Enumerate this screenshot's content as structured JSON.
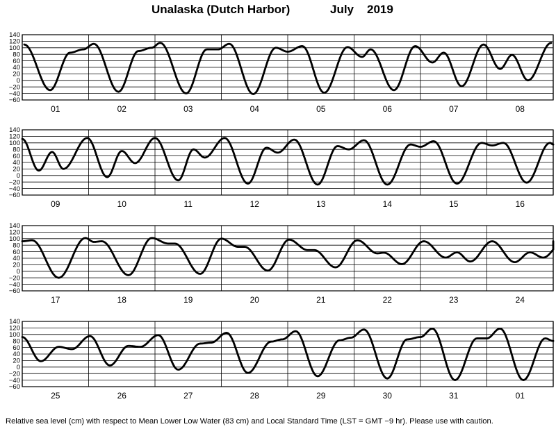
{
  "title": {
    "station": "Unalaska (Dutch Harbor)",
    "month": "July",
    "year": "2019"
  },
  "footnote": "Relative sea level (cm) with respect to Mean Lower Low Water (83 cm) and Local Standard Time (LST = GMT −9 hr). Please use with caution.",
  "chart_data": {
    "type": "line",
    "title": "Unalaska (Dutch Harbor)    July   2019",
    "ylabel": "Relative sea level (cm)",
    "ylim": [
      -60,
      140
    ],
    "yticks": [
      -60,
      -40,
      -20,
      0,
      20,
      40,
      60,
      80,
      100,
      120,
      140
    ],
    "ytick_labels": [
      "−60",
      "−40",
      "−20",
      "0",
      "20",
      "40",
      "60",
      "80",
      "100",
      "120",
      "140"
    ],
    "grid": true,
    "x_unit": "day",
    "panels": [
      {
        "days": [
          "01",
          "02",
          "03",
          "04",
          "05",
          "06",
          "07",
          "08"
        ],
        "extrema": [
          [
            1.03,
            110
          ],
          [
            1.42,
            -30
          ],
          [
            1.72,
            85
          ],
          [
            1.92,
            95
          ],
          [
            2.08,
            112
          ],
          [
            2.45,
            -35
          ],
          [
            2.75,
            90
          ],
          [
            2.95,
            100
          ],
          [
            3.08,
            115
          ],
          [
            3.47,
            -40
          ],
          [
            3.78,
            95
          ],
          [
            3.95,
            95
          ],
          [
            4.12,
            112
          ],
          [
            4.48,
            -42
          ],
          [
            4.82,
            100
          ],
          [
            5.0,
            88
          ],
          [
            5.22,
            105
          ],
          [
            5.55,
            -38
          ],
          [
            5.9,
            102
          ],
          [
            6.12,
            72
          ],
          [
            6.25,
            95
          ],
          [
            6.6,
            -30
          ],
          [
            6.92,
            105
          ],
          [
            7.18,
            55
          ],
          [
            7.35,
            85
          ],
          [
            7.62,
            -18
          ],
          [
            7.95,
            110
          ],
          [
            8.2,
            35
          ],
          [
            8.38,
            78
          ],
          [
            8.62,
            0
          ],
          [
            8.97,
            115
          ]
        ]
      },
      {
        "days": [
          "09",
          "10",
          "11",
          "12",
          "13",
          "14",
          "15",
          "16"
        ],
        "extrema": [
          [
            9.0,
            112
          ],
          [
            9.25,
            15
          ],
          [
            9.45,
            72
          ],
          [
            9.62,
            20
          ],
          [
            9.98,
            115
          ],
          [
            10.28,
            -5
          ],
          [
            10.5,
            75
          ],
          [
            10.7,
            38
          ],
          [
            11.0,
            115
          ],
          [
            11.35,
            -15
          ],
          [
            11.58,
            80
          ],
          [
            11.75,
            55
          ],
          [
            12.05,
            115
          ],
          [
            12.4,
            -25
          ],
          [
            12.68,
            85
          ],
          [
            12.85,
            70
          ],
          [
            13.1,
            110
          ],
          [
            13.45,
            -28
          ],
          [
            13.75,
            90
          ],
          [
            13.92,
            80
          ],
          [
            14.15,
            108
          ],
          [
            14.5,
            -28
          ],
          [
            14.85,
            95
          ],
          [
            15.0,
            88
          ],
          [
            15.2,
            105
          ],
          [
            15.55,
            -25
          ],
          [
            15.92,
            100
          ],
          [
            16.08,
            92
          ],
          [
            16.25,
            100
          ],
          [
            16.6,
            -22
          ],
          [
            16.95,
            100
          ],
          [
            17.0,
            95
          ]
        ]
      },
      {
        "days": [
          "17",
          "18",
          "19",
          "20",
          "21",
          "22",
          "23",
          "24"
        ],
        "extrema": [
          [
            17.0,
            92
          ],
          [
            17.15,
            95
          ],
          [
            17.55,
            -20
          ],
          [
            17.95,
            102
          ],
          [
            18.08,
            90
          ],
          [
            18.2,
            92
          ],
          [
            18.6,
            -12
          ],
          [
            18.95,
            102
          ],
          [
            19.2,
            85
          ],
          [
            19.3,
            85
          ],
          [
            19.68,
            -8
          ],
          [
            20.0,
            100
          ],
          [
            20.25,
            75
          ],
          [
            20.35,
            75
          ],
          [
            20.7,
            2
          ],
          [
            21.02,
            97
          ],
          [
            21.3,
            65
          ],
          [
            21.4,
            65
          ],
          [
            21.72,
            12
          ],
          [
            22.05,
            95
          ],
          [
            22.35,
            55
          ],
          [
            22.45,
            57
          ],
          [
            22.72,
            22
          ],
          [
            23.05,
            92
          ],
          [
            23.38,
            42
          ],
          [
            23.55,
            58
          ],
          [
            23.75,
            30
          ],
          [
            24.08,
            92
          ],
          [
            24.42,
            28
          ],
          [
            24.65,
            58
          ],
          [
            24.85,
            42
          ],
          [
            25.15,
            92
          ]
        ]
      },
      {
        "days": [
          "25",
          "26",
          "27",
          "28",
          "29",
          "30",
          "31",
          "01"
        ],
        "extrema": [
          [
            25.0,
            92
          ],
          [
            25.28,
            18
          ],
          [
            25.55,
            62
          ],
          [
            25.75,
            55
          ],
          [
            26.02,
            95
          ],
          [
            26.32,
            5
          ],
          [
            26.6,
            65
          ],
          [
            26.78,
            62
          ],
          [
            27.05,
            98
          ],
          [
            27.35,
            -8
          ],
          [
            27.68,
            72
          ],
          [
            27.85,
            75
          ],
          [
            28.08,
            105
          ],
          [
            28.4,
            -18
          ],
          [
            28.75,
            78
          ],
          [
            28.92,
            85
          ],
          [
            29.12,
            110
          ],
          [
            29.45,
            -28
          ],
          [
            29.78,
            82
          ],
          [
            29.95,
            90
          ],
          [
            30.15,
            115
          ],
          [
            30.5,
            -35
          ],
          [
            30.8,
            85
          ],
          [
            31.0,
            92
          ],
          [
            31.18,
            118
          ],
          [
            31.52,
            -40
          ],
          [
            31.85,
            88
          ],
          [
            32.0,
            88
          ],
          [
            32.2,
            118
          ],
          [
            32.55,
            -40
          ],
          [
            32.88,
            88
          ],
          [
            33.0,
            80
          ]
        ]
      }
    ]
  }
}
